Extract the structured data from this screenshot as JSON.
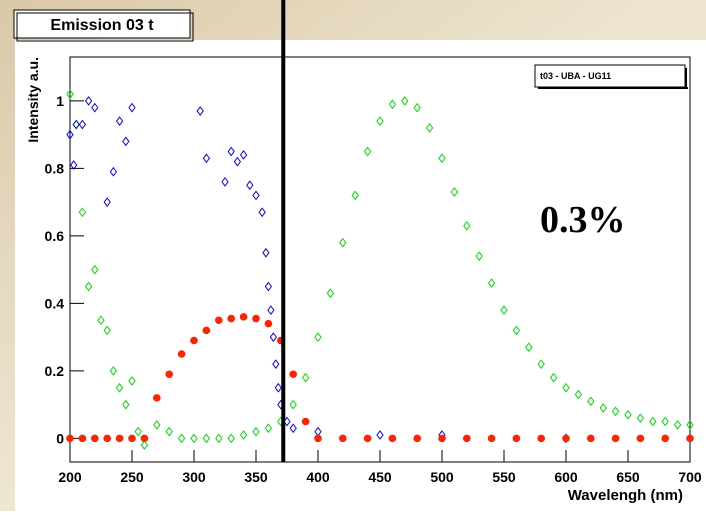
{
  "chart_data": {
    "type": "scatter",
    "title": "Emission 03 t",
    "legend_title": "t03 - UBA - UG11",
    "annotation": "0.3%",
    "x_label": "Wavelengh (nm)",
    "y_label": "Intensity a.u.",
    "xlim": [
      200,
      700
    ],
    "ylim": [
      -0.07,
      1.13
    ],
    "xticks": [
      200,
      250,
      300,
      350,
      400,
      450,
      500,
      550,
      600,
      650,
      700
    ],
    "yticks": [
      0,
      0.2,
      0.4,
      0.6,
      0.8,
      1
    ],
    "vline_x": 372,
    "series": [
      {
        "color": "#00dd00",
        "marker": "diamond",
        "x": [
          200,
          205,
          210,
          215,
          220,
          225,
          230,
          235,
          240,
          245,
          250,
          255,
          260,
          270,
          280,
          290,
          300,
          310,
          320,
          330,
          340,
          350,
          360,
          370,
          380,
          390,
          400,
          410,
          420,
          430,
          440,
          450,
          460,
          470,
          480,
          490,
          500,
          510,
          520,
          530,
          540,
          550,
          560,
          570,
          580,
          590,
          600,
          610,
          620,
          630,
          640,
          650,
          660,
          670,
          680,
          690,
          700
        ],
        "values": [
          1.02,
          0.93,
          0.67,
          0.45,
          0.5,
          0.35,
          0.32,
          0.2,
          0.15,
          0.1,
          0.17,
          0.02,
          -0.02,
          0.04,
          0.02,
          0.0,
          0.0,
          0.0,
          0.0,
          0.0,
          0.01,
          0.02,
          0.03,
          0.05,
          0.1,
          0.18,
          0.3,
          0.43,
          0.58,
          0.72,
          0.85,
          0.94,
          0.99,
          1.0,
          0.98,
          0.92,
          0.83,
          0.73,
          0.63,
          0.54,
          0.46,
          0.38,
          0.32,
          0.27,
          0.22,
          0.18,
          0.15,
          0.13,
          0.11,
          0.09,
          0.08,
          0.07,
          0.06,
          0.05,
          0.05,
          0.04,
          0.04
        ]
      },
      {
        "color": "#0000ee",
        "marker": "diamond",
        "x": [
          200,
          203,
          205,
          210,
          215,
          220,
          230,
          235,
          240,
          245,
          250,
          305,
          310,
          325,
          330,
          335,
          340,
          345,
          350,
          355,
          358,
          360,
          362,
          364,
          366,
          368,
          370,
          375,
          380,
          400,
          450,
          500,
          600,
          700
        ],
        "values": [
          0.9,
          0.81,
          0.93,
          0.93,
          1.0,
          0.98,
          0.7,
          0.79,
          0.94,
          0.88,
          0.98,
          0.97,
          0.83,
          0.76,
          0.85,
          0.82,
          0.84,
          0.75,
          0.72,
          0.67,
          0.55,
          0.45,
          0.38,
          0.3,
          0.22,
          0.15,
          0.1,
          0.05,
          0.03,
          0.02,
          0.01,
          0.01,
          0.0,
          0.0
        ]
      },
      {
        "color": "#ff2200",
        "marker": "circle",
        "x": [
          200,
          210,
          220,
          230,
          240,
          250,
          260,
          270,
          280,
          290,
          300,
          310,
          320,
          330,
          340,
          350,
          360,
          370,
          380,
          390,
          400,
          420,
          440,
          460,
          480,
          500,
          520,
          540,
          560,
          580,
          600,
          620,
          640,
          660,
          680,
          700
        ],
        "values": [
          0,
          0,
          0,
          0,
          0,
          0,
          0,
          0.12,
          0.19,
          0.25,
          0.29,
          0.32,
          0.35,
          0.355,
          0.36,
          0.355,
          0.34,
          0.29,
          0.19,
          0.05,
          0,
          0,
          0,
          0,
          0,
          0,
          0,
          0,
          0,
          0,
          0,
          0,
          0,
          0,
          0,
          0
        ]
      }
    ]
  }
}
